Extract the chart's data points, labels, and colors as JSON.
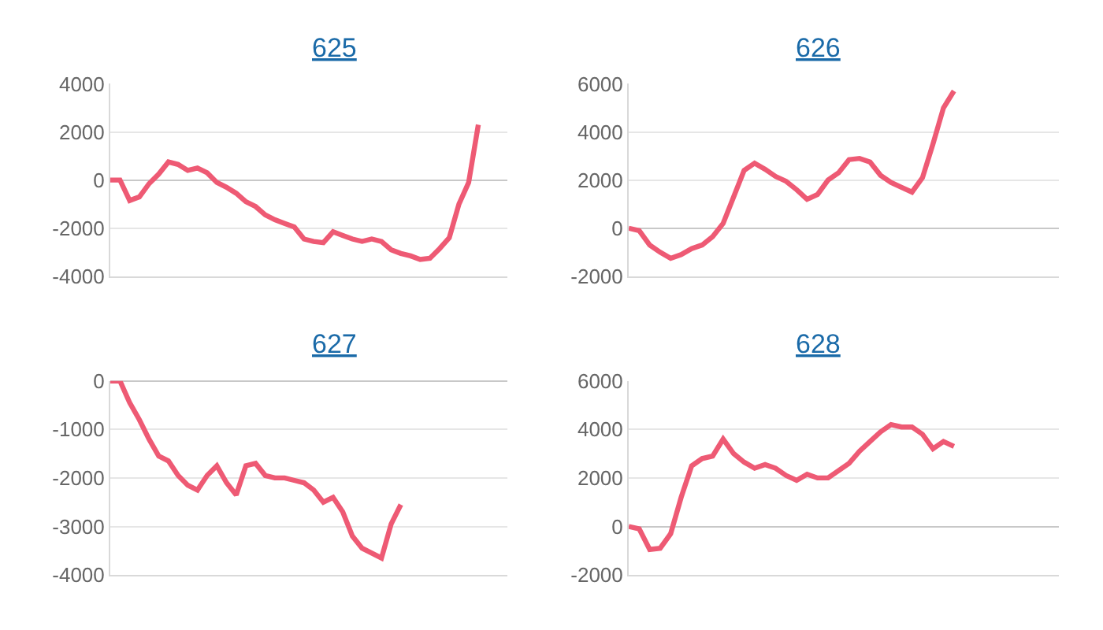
{
  "chart_data": [
    {
      "type": "line",
      "title": "625",
      "categories": [
        null,
        null,
        null,
        null,
        null,
        null,
        null,
        null,
        null,
        null,
        null,
        null,
        null,
        null,
        null,
        null,
        null,
        null,
        null,
        null,
        null,
        null,
        null,
        null,
        null,
        null,
        null,
        null,
        null,
        null,
        null,
        null,
        null,
        null,
        null,
        null,
        null,
        null,
        null,
        null,
        null,
        null
      ],
      "series": [
        {
          "color": "#ee5a74",
          "values": [
            0,
            0,
            -850,
            -700,
            -150,
            250,
            750,
            650,
            400,
            500,
            300,
            -100,
            -300,
            -550,
            -900,
            -1100,
            -1450,
            -1650,
            -1800,
            -1950,
            -2450,
            -2550,
            -2600,
            -2150,
            -2300,
            -2450,
            -2550,
            -2450,
            -2550,
            -2900,
            -3050,
            -3150,
            -3300,
            -3250,
            -2850,
            -2400,
            -1000,
            -100,
            2300,
            null,
            null,
            null
          ]
        }
      ],
      "ylim": [
        -4000,
        4000
      ],
      "yticks": [
        -4000,
        -2000,
        0,
        2000,
        4000
      ],
      "grid": "y",
      "tick_labels": "y",
      "marker": "none"
    },
    {
      "type": "line",
      "title": "626",
      "categories": [
        null,
        null,
        null,
        null,
        null,
        null,
        null,
        null,
        null,
        null,
        null,
        null,
        null,
        null,
        null,
        null,
        null,
        null,
        null,
        null,
        null,
        null,
        null,
        null,
        null,
        null,
        null,
        null,
        null,
        null,
        null,
        null,
        null,
        null,
        null,
        null,
        null,
        null,
        null,
        null,
        null,
        null
      ],
      "series": [
        {
          "color": "#ee5a74",
          "values": [
            0,
            -100,
            -700,
            -1000,
            -1250,
            -1100,
            -850,
            -700,
            -350,
            200,
            1300,
            2400,
            2700,
            2450,
            2150,
            1950,
            1600,
            1200,
            1400,
            2000,
            2300,
            2850,
            2900,
            2750,
            2200,
            1900,
            1700,
            1500,
            2100,
            3500,
            5000,
            5700,
            null,
            null,
            null,
            null,
            null,
            null,
            null,
            null,
            null,
            null
          ]
        }
      ],
      "ylim": [
        -2000,
        6000
      ],
      "yticks": [
        -2000,
        0,
        2000,
        4000,
        6000
      ],
      "grid": "y",
      "tick_labels": "y",
      "marker": "none"
    },
    {
      "type": "line",
      "title": "627",
      "categories": [
        null,
        null,
        null,
        null,
        null,
        null,
        null,
        null,
        null,
        null,
        null,
        null,
        null,
        null,
        null,
        null,
        null,
        null,
        null,
        null,
        null,
        null,
        null,
        null,
        null,
        null,
        null,
        null,
        null,
        null,
        null,
        null,
        null,
        null,
        null,
        null,
        null,
        null,
        null,
        null,
        null,
        null
      ],
      "series": [
        {
          "color": "#ee5a74",
          "values": [
            0,
            0,
            -450,
            -800,
            -1200,
            -1550,
            -1650,
            -1950,
            -2150,
            -2250,
            -1950,
            -1750,
            -2100,
            -2350,
            -1750,
            -1700,
            -1950,
            -2000,
            -2000,
            -2050,
            -2100,
            -2250,
            -2500,
            -2400,
            -2700,
            -3200,
            -3450,
            -3550,
            -3650,
            -2950,
            -2550,
            null,
            null,
            null,
            null,
            null,
            null,
            null,
            null,
            null,
            null,
            null
          ]
        }
      ],
      "ylim": [
        -4000,
        0
      ],
      "yticks": [
        -4000,
        -3000,
        -2000,
        -1000,
        0
      ],
      "grid": "y",
      "tick_labels": "y",
      "marker": "none"
    },
    {
      "type": "line",
      "title": "628",
      "categories": [
        null,
        null,
        null,
        null,
        null,
        null,
        null,
        null,
        null,
        null,
        null,
        null,
        null,
        null,
        null,
        null,
        null,
        null,
        null,
        null,
        null,
        null,
        null,
        null,
        null,
        null,
        null,
        null,
        null,
        null,
        null,
        null,
        null,
        null,
        null,
        null,
        null,
        null,
        null,
        null,
        null,
        null
      ],
      "series": [
        {
          "color": "#ee5a74",
          "values": [
            0,
            -100,
            -950,
            -900,
            -300,
            1200,
            2500,
            2800,
            2900,
            3600,
            3000,
            2650,
            2400,
            2550,
            2400,
            2100,
            1900,
            2150,
            2000,
            2000,
            2300,
            2600,
            3100,
            3500,
            3900,
            4200,
            4100,
            4100,
            3800,
            3200,
            3500,
            3300,
            null,
            null,
            null,
            null,
            null,
            null,
            null,
            null,
            null,
            null
          ]
        }
      ],
      "ylim": [
        -2000,
        6000
      ],
      "yticks": [
        -2000,
        0,
        2000,
        4000,
        6000
      ],
      "grid": "y",
      "tick_labels": "y",
      "marker": "none"
    }
  ]
}
